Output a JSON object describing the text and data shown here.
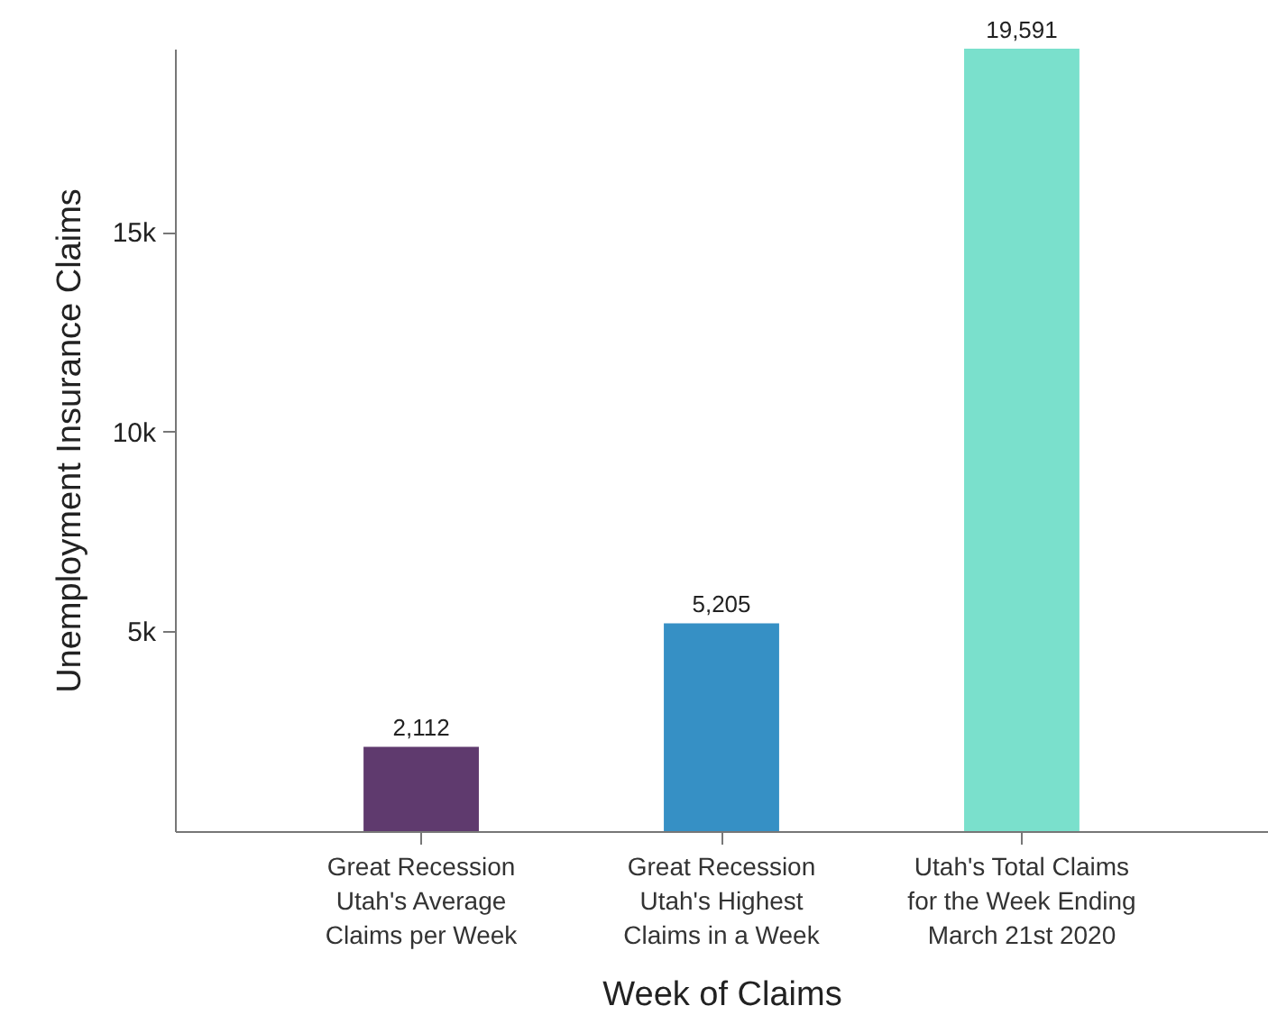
{
  "chart_data": {
    "type": "bar",
    "xlabel": "Week of Claims",
    "ylabel": "Unemployment Insurance Claims",
    "categories": [
      "Great Recession Utah's Average Claims per Week",
      "Great Recession Utah's Highest Claims in a Week",
      "Utah's Total Claims for the Week Ending March 21st 2020"
    ],
    "values": [
      2112,
      5205,
      19591
    ],
    "colors": [
      "#5f3a6e",
      "#3690c5",
      "#7ae0cc"
    ],
    "ylim": [
      0,
      19591
    ],
    "yticks": [
      {
        "value": 5000,
        "label": "5k"
      },
      {
        "value": 10000,
        "label": "10k"
      },
      {
        "value": 15000,
        "label": "15k"
      }
    ],
    "value_labels": [
      "2,112",
      "5,205",
      "19,591"
    ],
    "grid": false
  }
}
